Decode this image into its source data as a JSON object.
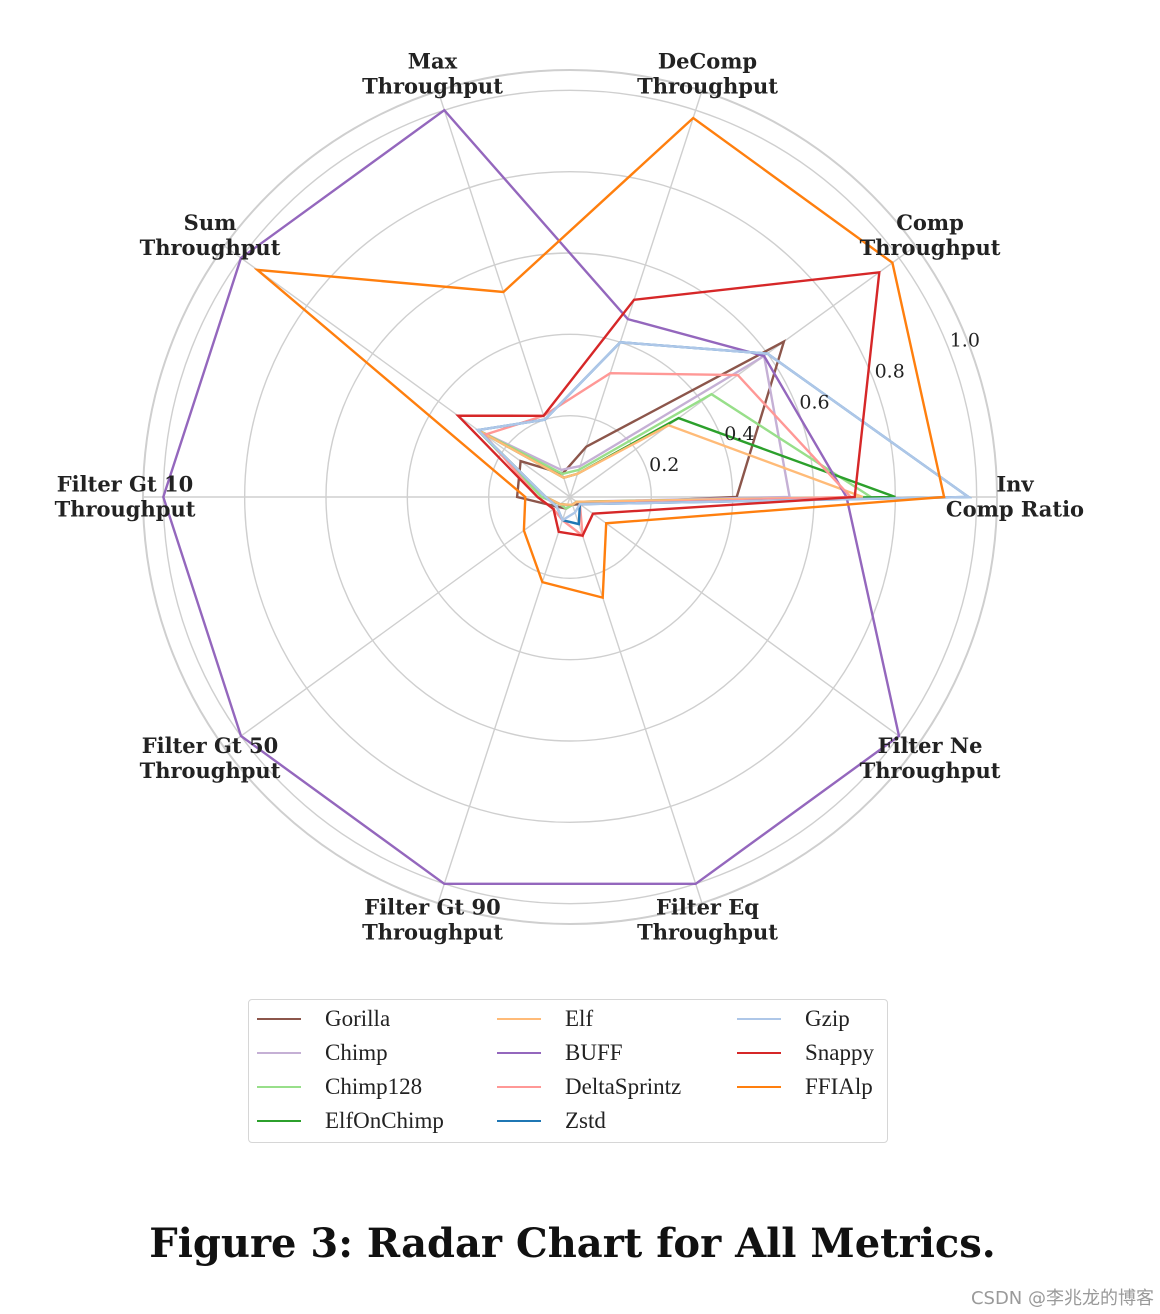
{
  "chart_data": {
    "type": "radar",
    "title": "",
    "axes": [
      {
        "lines": [
          "Inv",
          "Comp Ratio"
        ]
      },
      {
        "lines": [
          "Comp",
          "Throughput"
        ]
      },
      {
        "lines": [
          "DeComp",
          "Throughput"
        ]
      },
      {
        "lines": [
          "Max",
          "Throughput"
        ]
      },
      {
        "lines": [
          "Sum",
          "Throughput"
        ]
      },
      {
        "lines": [
          "Filter Gt 10",
          "Throughput"
        ]
      },
      {
        "lines": [
          "Filter Gt 50",
          "Throughput"
        ]
      },
      {
        "lines": [
          "Filter Gt 90",
          "Throughput"
        ]
      },
      {
        "lines": [
          "Filter Eq",
          "Throughput"
        ]
      },
      {
        "lines": [
          "Filter Ne",
          "Throughput"
        ]
      }
    ],
    "radial_ticks": [
      {
        "value": 0.2,
        "label": "0.2"
      },
      {
        "value": 0.4,
        "label": "0.4"
      },
      {
        "value": 0.6,
        "label": "0.6"
      },
      {
        "value": 0.8,
        "label": "0.8"
      },
      {
        "value": 1.0,
        "label": "1.0"
      }
    ],
    "grid_rings": [
      0.2,
      0.4,
      0.6,
      0.8,
      1.0,
      1.05
    ],
    "rlim": [
      0,
      1.05
    ],
    "series": [
      {
        "name": "Gorilla",
        "color": "#8c564b",
        "values": [
          0.41,
          0.65,
          0.13,
          0.06,
          0.15,
          0.13,
          0.04,
          0.03,
          0.02,
          0.03
        ]
      },
      {
        "name": "Chimp",
        "color": "#c5b0d5",
        "values": [
          0.54,
          0.59,
          0.08,
          0.07,
          0.28,
          0.07,
          0.03,
          0.03,
          0.02,
          0.02
        ]
      },
      {
        "name": "Chimp128",
        "color": "#98df8a",
        "values": [
          0.74,
          0.43,
          0.07,
          0.06,
          0.28,
          0.07,
          0.03,
          0.03,
          0.02,
          0.02
        ]
      },
      {
        "name": "ElfOnChimp",
        "color": "#2ca02c",
        "values": [
          0.8,
          0.33,
          0.06,
          0.05,
          0.28,
          0.06,
          0.03,
          0.02,
          0.02,
          0.02
        ]
      },
      {
        "name": "Elf",
        "color": "#ffbb78",
        "values": [
          0.72,
          0.3,
          0.06,
          0.05,
          0.28,
          0.06,
          0.03,
          0.02,
          0.02,
          0.02
        ]
      },
      {
        "name": "BUFF",
        "color": "#9467bd",
        "values": [
          0.68,
          0.59,
          0.46,
          1.0,
          1.0,
          1.0,
          1.0,
          1.0,
          1.0,
          1.0
        ]
      },
      {
        "name": "DeltaSprintz",
        "color": "#ff9896",
        "values": [
          0.69,
          0.51,
          0.32,
          0.21,
          0.26,
          0.08,
          0.05,
          0.06,
          0.1,
          0.03
        ]
      },
      {
        "name": "Zstd",
        "color": "#1f77b4",
        "values": [
          0.98,
          0.6,
          0.4,
          0.2,
          0.28,
          0.06,
          0.04,
          0.06,
          0.07,
          0.03
        ]
      },
      {
        "name": "Gzip",
        "color": "#aec7e8",
        "values": [
          0.98,
          0.6,
          0.4,
          0.2,
          0.28,
          0.06,
          0.04,
          0.06,
          0.04,
          0.03
        ]
      },
      {
        "name": "Snappy",
        "color": "#d62728",
        "values": [
          0.7,
          0.94,
          0.51,
          0.21,
          0.34,
          0.08,
          0.05,
          0.09,
          0.1,
          0.07
        ]
      },
      {
        "name": "FFIAlp",
        "color": "#ff7f0e",
        "values": [
          0.92,
          0.98,
          0.98,
          0.53,
          0.95,
          0.11,
          0.14,
          0.22,
          0.26,
          0.11
        ]
      }
    ],
    "legend_position": "bottom"
  },
  "caption": "Figure 3: Radar Chart for All Metrics.",
  "watermark": "CSDN @李兆龙的博客"
}
